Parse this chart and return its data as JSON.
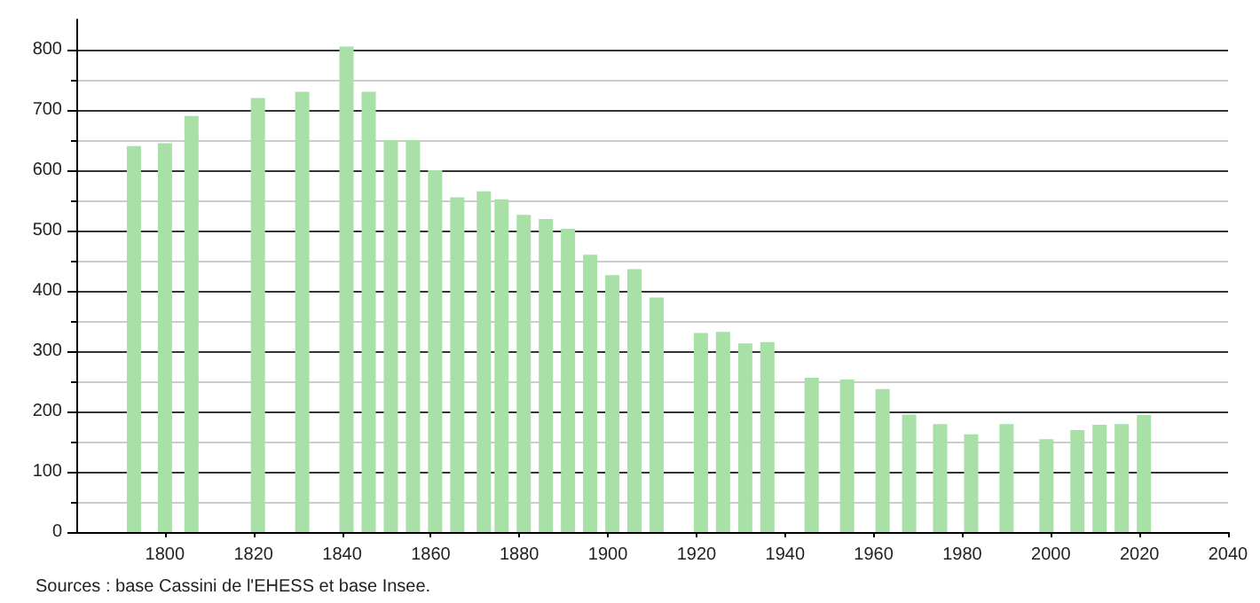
{
  "chart_data": {
    "type": "bar",
    "x": [
      1793,
      1800,
      1806,
      1821,
      1831,
      1841,
      1846,
      1851,
      1856,
      1861,
      1866,
      1872,
      1876,
      1881,
      1886,
      1891,
      1896,
      1901,
      1906,
      1911,
      1921,
      1926,
      1931,
      1936,
      1946,
      1954,
      1962,
      1968,
      1975,
      1982,
      1990,
      1999,
      2006,
      2011,
      2016,
      2021
    ],
    "values": [
      640,
      645,
      690,
      720,
      730,
      805,
      730,
      650,
      650,
      600,
      555,
      565,
      552,
      526,
      519,
      503,
      460,
      426,
      436,
      389,
      330,
      332,
      313,
      315,
      256,
      253,
      237,
      195,
      179,
      162,
      179,
      154,
      169,
      178,
      179,
      194
    ],
    "color": "#a8e0a8",
    "xlim": [
      1780,
      2040
    ],
    "xticks": [
      1800,
      1820,
      1840,
      1860,
      1880,
      1900,
      1920,
      1940,
      1960,
      1980,
      2000,
      2020,
      2040
    ],
    "ylim": [
      0,
      850
    ],
    "yticks": [
      0,
      100,
      200,
      300,
      400,
      500,
      600,
      700,
      800
    ],
    "grid": "y",
    "annotations": [
      "Sources : base Cassini de l'EHESS et base Insee."
    ]
  }
}
